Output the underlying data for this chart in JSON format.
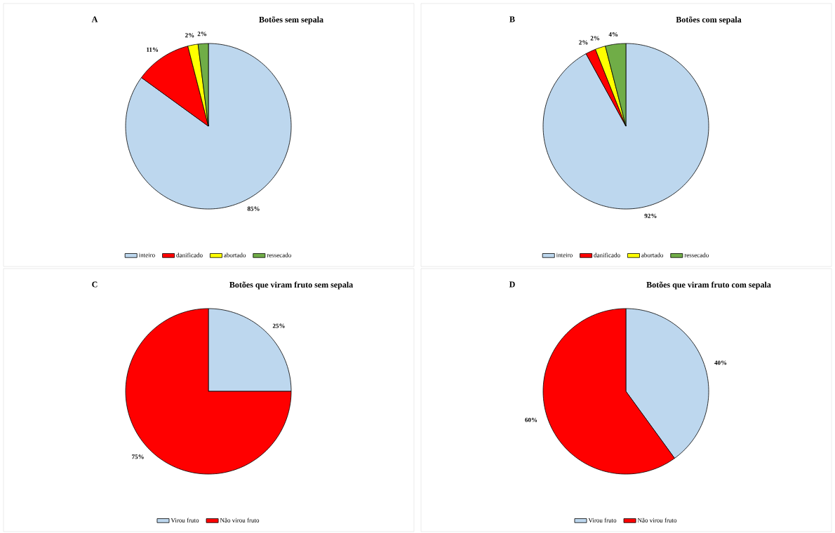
{
  "chart_data": [
    {
      "type": "pie",
      "title": "Botões sem sepala",
      "annotations": [
        "A"
      ],
      "categories": [
        "inteiro",
        "danificado",
        "abortado",
        "ressecado"
      ],
      "values": [
        85,
        11,
        2,
        2
      ],
      "value_labels": [
        "85%",
        "11%",
        "2%",
        "2%"
      ],
      "colors": [
        "#bdd7ee",
        "#ff0000",
        "#ffff00",
        "#70ad47"
      ],
      "legend": "bottom"
    },
    {
      "type": "pie",
      "title": "Botões com sepala",
      "annotations": [
        "B"
      ],
      "categories": [
        "inteiro",
        "danificado",
        "abortado",
        "ressecado"
      ],
      "values": [
        92,
        2,
        2,
        4
      ],
      "value_labels": [
        "92%",
        "2%",
        "2%",
        "4%"
      ],
      "colors": [
        "#bdd7ee",
        "#ff0000",
        "#ffff00",
        "#70ad47"
      ],
      "legend": "bottom"
    },
    {
      "type": "pie",
      "title": "Botões que viram fruto sem sepala",
      "annotations": [
        "C"
      ],
      "categories": [
        "Virou fruto",
        "Não virou fruto"
      ],
      "values": [
        25,
        75
      ],
      "value_labels": [
        "25%",
        "75%"
      ],
      "colors": [
        "#bdd7ee",
        "#ff0000"
      ],
      "legend": "bottom"
    },
    {
      "type": "pie",
      "title": "Botões que viram fruto com sepala",
      "annotations": [
        "D"
      ],
      "categories": [
        "Virou fruto",
        "Não virou fruto"
      ],
      "values": [
        40,
        60
      ],
      "value_labels": [
        "40%",
        "60%"
      ],
      "colors": [
        "#bdd7ee",
        "#ff0000"
      ],
      "legend": "bottom"
    }
  ]
}
